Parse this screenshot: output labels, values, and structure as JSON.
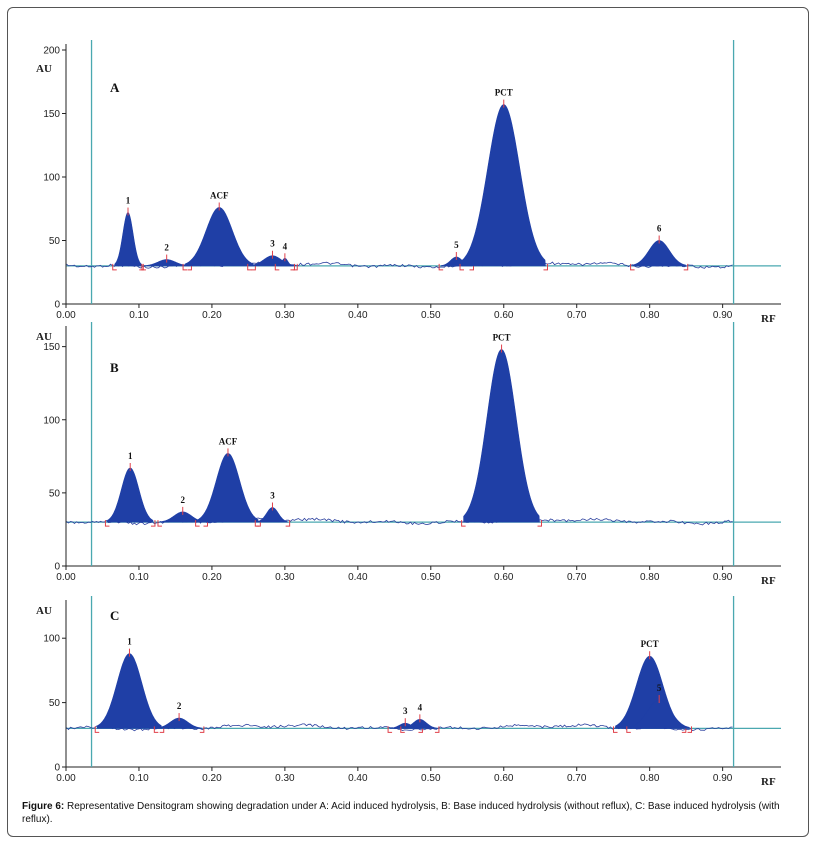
{
  "caption": {
    "label": "Figure 6:",
    "text": "Representative Densitogram showing degradation under A: Acid induced hydrolysis, B: Base induced hydrolysis (without reflux), C: Base induced hydrolysis (with reflux)."
  },
  "colors": {
    "fill": "#1f3fa6",
    "noise": "#2a3f9e",
    "baseline": "#4aa8b0",
    "marker": "#e0404a",
    "axis": "#222222"
  },
  "chart_data": [
    {
      "type": "area",
      "panel": "A",
      "xlabel": "RF",
      "ylabel": "AU",
      "xlim": [
        0,
        0.98
      ],
      "ylim": [
        0,
        200
      ],
      "x_ticks": [
        "0.00",
        "0.10",
        "0.20",
        "0.30",
        "0.40",
        "0.50",
        "0.60",
        "0.70",
        "0.80",
        "0.90"
      ],
      "y_ticks": [
        0,
        50,
        100,
        150,
        200
      ],
      "start_line_rf": 0.035,
      "end_line_rf": 0.915,
      "baseline_au": 30,
      "peaks": [
        {
          "label": "1",
          "rf": 0.085,
          "height_au": 72,
          "width_rf": 0.007
        },
        {
          "label": "2",
          "rf": 0.138,
          "height_au": 35,
          "width_rf": 0.012
        },
        {
          "label": "ACF",
          "rf": 0.21,
          "height_au": 76,
          "width_rf": 0.018
        },
        {
          "label": "3",
          "rf": 0.283,
          "height_au": 38,
          "width_rf": 0.012
        },
        {
          "label": "4",
          "rf": 0.3,
          "height_au": 36,
          "width_rf": 0.004
        },
        {
          "label": "5",
          "rf": 0.535,
          "height_au": 37,
          "width_rf": 0.008
        },
        {
          "label": "PCT",
          "rf": 0.6,
          "height_au": 157,
          "width_rf": 0.022
        },
        {
          "label": "6",
          "rf": 0.813,
          "height_au": 50,
          "width_rf": 0.014
        }
      ]
    },
    {
      "type": "area",
      "panel": "B",
      "xlabel": "RF",
      "ylabel": "AU",
      "xlim": [
        0,
        0.98
      ],
      "ylim": [
        0,
        160
      ],
      "x_ticks": [
        "0.00",
        "0.10",
        "0.20",
        "0.30",
        "0.40",
        "0.50",
        "0.60",
        "0.70",
        "0.80",
        "0.90"
      ],
      "y_ticks": [
        0,
        50,
        100,
        150
      ],
      "start_line_rf": 0.035,
      "end_line_rf": 0.915,
      "baseline_au": 30,
      "peaks": [
        {
          "label": "1",
          "rf": 0.088,
          "height_au": 67,
          "width_rf": 0.012
        },
        {
          "label": "2",
          "rf": 0.16,
          "height_au": 37,
          "width_rf": 0.012
        },
        {
          "label": "ACF",
          "rf": 0.222,
          "height_au": 77,
          "width_rf": 0.016
        },
        {
          "label": "3",
          "rf": 0.283,
          "height_au": 40,
          "width_rf": 0.008
        },
        {
          "label": "PCT",
          "rf": 0.597,
          "height_au": 148,
          "width_rf": 0.02
        }
      ]
    },
    {
      "type": "area",
      "panel": "C",
      "xlabel": "RF",
      "ylabel": "AU",
      "xlim": [
        0,
        0.98
      ],
      "ylim": [
        0,
        125
      ],
      "x_ticks": [
        "0.00",
        "0.10",
        "0.20",
        "0.30",
        "0.40",
        "0.50",
        "0.60",
        "0.70",
        "0.80",
        "0.90"
      ],
      "y_ticks": [
        0,
        50,
        100
      ],
      "start_line_rf": 0.035,
      "end_line_rf": 0.915,
      "baseline_au": 30,
      "peaks": [
        {
          "label": "1",
          "rf": 0.087,
          "height_au": 88,
          "width_rf": 0.017
        },
        {
          "label": "2",
          "rf": 0.155,
          "height_au": 38,
          "width_rf": 0.012
        },
        {
          "label": "3",
          "rf": 0.465,
          "height_au": 34,
          "width_rf": 0.008
        },
        {
          "label": "4",
          "rf": 0.485,
          "height_au": 37,
          "width_rf": 0.009
        },
        {
          "label": "PCT",
          "rf": 0.8,
          "height_au": 86,
          "width_rf": 0.018
        },
        {
          "label": "5",
          "rf": 0.813,
          "height_au": 52,
          "width_rf": 0.016
        }
      ]
    }
  ]
}
